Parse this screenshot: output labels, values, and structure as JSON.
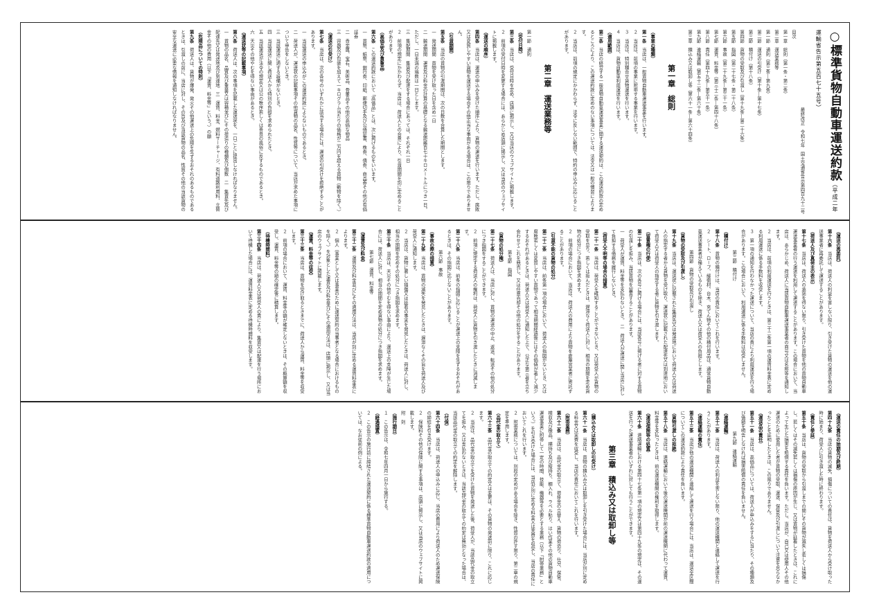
{
  "document": {
    "title": "○標準貨物自動車運送約款",
    "title_note": "（平成二年運輸省告示第五百七十五号）",
    "amendments": [
      "最終改正　令和七年　国土交通省告示第四百九十二号"
    ]
  },
  "panels": [
    [
      {
        "t": "title"
      },
      {
        "t": "meta",
        "v": "最終改正　令和七年　国土交通省告示第四百九十二号"
      },
      {
        "t": "p",
        "v": "目次"
      },
      {
        "t": "p",
        "v": "第一章　総則（第一条・第二条）"
      },
      {
        "t": "p",
        "v": "第二章　運送業務等"
      },
      {
        "t": "p",
        "v": "第一節　通則（第三条―第九条）"
      },
      {
        "t": "p",
        "v": "第二節　運送の引受け（第十条―第十七条）"
      },
      {
        "t": "p",
        "v": "第三節　積付け（第十八条）"
      },
      {
        "t": "p",
        "v": "第四節　貨物の受取及び引渡し（第十九条―第二十六条）"
      },
      {
        "t": "p",
        "v": "第五節　指図（第二十七条・第二十八条）"
      },
      {
        "t": "p",
        "v": "第六節　事故（第二十九条―第三十一条）"
      },
      {
        "t": "p",
        "v": "第七節　運賃、料金等（第三十二条―第四十八条）"
      },
      {
        "t": "p",
        "v": "第八節　責任（第四十九条―第五十一条）"
      },
      {
        "t": "p",
        "v": "第九節　連絡運輸（第五十二条―第六十条）"
      },
      {
        "t": "p",
        "v": "第三章　積込み又は取卸し等（第六十一条―第六十四条）"
      },
      {
        "t": "chap",
        "v": "第一章　総則"
      },
      {
        "t": "cap",
        "v": "（事業の種類）"
      },
      {
        "t": "p",
        "a": "第一条",
        "v": "　当店は、一般貨物自動車運送事業を行います。"
      },
      {
        "t": "p",
        "v": "２　当店は、前項の事業に附帯する事業を行います。"
      },
      {
        "t": "p",
        "v": "３　当店は、特別積合せ貨物運送を行います。"
      },
      {
        "t": "p",
        "v": "４　当店は、貨物自動車利用運送を行います。"
      },
      {
        "t": "cap",
        "v": "（適用範囲）"
      },
      {
        "t": "p",
        "a": "第二条",
        "v": "　当店の経営する一般貨物自動車運送事業に関する運送契約は、この運送約款の定めるところにより、この運送約款に定めのない事項については、法令又は一般の慣習によります。"
      },
      {
        "t": "p",
        "v": "２　当店は、前項の規定にかかわらず、法令に反しない範囲で、特約の申込みに応じることがあります。"
      },
      {
        "t": "chap",
        "v": "第二章　運送業務等"
      },
      {
        "t": "p",
        "v": "第一節　通則"
      },
      {
        "t": "cap",
        "v": "（受付日時）"
      },
      {
        "t": "p",
        "a": "第三条",
        "v": "　当店は、受付日時を定め、店頭に掲示し、又は当店のウェブサイトに掲載します。"
      },
      {
        "t": "p",
        "v": "２　前項の受付日時を変更する場合には、あらかじめ店頭に掲示し、又は当店のウェブサイトに掲載します。"
      },
      {
        "t": "cap",
        "v": "（運送の順序）"
      },
      {
        "t": "p",
        "a": "第四条",
        "v": "　当店は、運送の申込みを受けた順序により、貨物の運送を行います。ただし、腐敗又は変質しやすい貨物を運送する場合その他正当な事由がある場合は、この限りでありません。"
      },
      {
        "t": "cap",
        "v": "（引渡期間）"
      },
      {
        "t": "p",
        "a": "第五条",
        "v": "　当店の貨物の引渡期間は、次の日数を合算した期間とします。"
      },
      {
        "t": "p",
        "v": "一　発送期間　貨物を受け取った日を含め一日"
      },
      {
        "t": "p",
        "v": "二　輸送期間　運賃及び料金の計算の基礎となる輸送距離百七十キロメートルにつき一日。ただし、一日未満の端数は一日とします。"
      },
      {
        "t": "p",
        "v": "三　集配期間　集貨及び配達をする場合にあっては、それぞれ一日"
      },
      {
        "t": "p",
        "v": "２　前項の規定にかかわらず、当店は、荷送人との合意により、引渡期間を別に定めることがあります。"
      },
      {
        "t": "cap",
        "v": "（高価品及び貴重品）"
      },
      {
        "t": "p",
        "a": "第六条",
        "v": "　この運送約款において「高価品」とは、次に掲げるものをいいます。"
      },
      {
        "t": "p",
        "v": "一　貨幣、紙幣、銀行券、印紙、郵便切手及び公債証書、株券、債券、商品券その他の有価証券"
      },
      {
        "t": "p",
        "v": "二　貴金属、宝石、美術品、骨董品その他の高価な物品"
      },
      {
        "t": "p",
        "v": "三　容器及び包装を加えて一キログラム当たりの価格が二万円を超える貨物（動物を除く。）"
      },
      {
        "t": "cap",
        "v": "（運送の引受け）"
      },
      {
        "t": "p",
        "a": "第七条",
        "v": "　当店は、次の各号のいずれかに該当する場合には、運送の引受けを拒絶することがあります。"
      },
      {
        "t": "p",
        "v": "一　当該運送の申込みがこの運送約款によらないものであるとき。"
      },
      {
        "t": "p",
        "v": "二　荷送人が、運送状の記載事項その他貨物の品名、性質等について、当店が求めた事項について申告をしないとき。"
      },
      {
        "t": "p",
        "v": "三　当該運送に適する設備がないとき。"
      },
      {
        "t": "p",
        "v": "四　当該運送に関し荷送人から特別の負担を求められたとき。"
      },
      {
        "t": "p",
        "v": "五　当該運送が法令の規定又は公の秩序若しくは善良の風俗に反するものであるとき。"
      },
      {
        "t": "p",
        "v": "六　天災その他やむを得ない事由があるとき。"
      },
      {
        "t": "cap",
        "v": "（運送状等の記載事項）"
      },
      {
        "t": "p",
        "a": "第八条",
        "v": "　荷送人は、次の事項を記載した運送状を、一口ごとに提出しなければなりません。"
      },
      {
        "t": "p",
        "v": "一　貨物の品名、品質及び重量又は容積並びにその荷造りの種類及び個数　二　集貨先及び配達先又は発送地及び到達地　三　運賃、料金、燃料サーチャージ、有料道路利用料、立替金その他の費用（以下「運賃、料金等」という。）の額"
      },
      {
        "t": "cap",
        "v": "（危険品についての特則）"
      },
      {
        "t": "p",
        "a": "第九条",
        "v": "　荷送人は、貨物が爆発、発火その他運送上の危険を生ずるおそれのあるものであるときは、引渡しの前に、当店に対し、その旨及び当該貨物の品名、性質その他の当該貨物の安全な運送に必要な情報を通知しなければなりません。"
      }
    ],
    [
      {
        "t": "cap",
        "v": "（運送の再委託）"
      },
      {
        "t": "p",
        "a": "第十六条",
        "v": "　当店は、荷送人の利益を害しない限り、引き受けた貨物の運送を他の運送事業者に再委託して運送することがあります。"
      },
      {
        "t": "cap",
        "v": "（荷送人及び真荷主の表示）"
      },
      {
        "t": "p",
        "a": "第十七条",
        "v": "　当店は、荷送人の承諾を得ない限り、引き受けた貨物を他の貨物自動車運送事業者の行う運送を利用して運送することがあります。この場合において、当店は、あらかじめ、荷送人に当該貨物自動車運送事業者の商号又は名称等を通知します。"
      },
      {
        "t": "p",
        "v": "２　当店は、前項の利用運送を行うときは、第三十二条第一項の運賃料金表に定める利用運送に係る手数料を収受します。"
      },
      {
        "t": "p",
        "v": "３　第一項の通知を行わなかった運送について、当店の責により利用運送を行う場合があります。この場合において、利用運送に係る手数料は収受しません。"
      },
      {
        "t": "sec",
        "v": "第三節　積付け"
      },
      {
        "t": "cap",
        "v": "（積付け）"
      },
      {
        "t": "p",
        "a": "第十八条",
        "v": "　貨物の積付けは、当店の責任においてこれを行います。"
      },
      {
        "t": "p",
        "v": "２　シート、ロープ、緩衝材、台木、充てん物その他の積付用品は、通常貨物自動車運送事業者が備えているものを除き、荷送人又は荷受人の負担とします。"
      },
      {
        "t": "sec",
        "v": "第四節　貨物の受取及び引渡し"
      },
      {
        "t": "cap",
        "v": "（貨物の受取及び引渡し）"
      },
      {
        "t": "p",
        "a": "第十九条",
        "v": "　当店は、運送状に記載された集貨先又は発送地において荷送人又は荷送人の指定する者から貨物を受け取り、運送状に記載された配達先又は到達地において荷受人又は荷受人の指定する者に貨物を引き渡します。"
      },
      {
        "t": "cap",
        "v": "（留置権の行使）"
      },
      {
        "t": "p",
        "a": "第二十条",
        "v": "　当店は、次の各号に掲げる場合には、当該各号に掲げる者に対する貨物の引渡しを拒み、当該貨物を留置することがあります。"
      },
      {
        "t": "p",
        "v": "一　荷受人が運賃、料金等を支払わないとき。　二　荷送人が運送に関し当店に対して負担する債務を履行しないとき。"
      },
      {
        "t": "cap",
        "v": "（荷受人不明等の場合の措置）"
      },
      {
        "t": "p",
        "a": "第二十一条",
        "v": "　当店は、荷受人を確知することができないとき、又は荷受人が貨物の受取を怠り、若しくは拒んだときは、遅滞なく荷送人に対し、相当の期間を定め貨物の処分につき指図を求めます。"
      },
      {
        "t": "p",
        "v": "２　前項の場合において、当店は、荷送人の費用により貨物を倉庫営業者に寄託することがあります。"
      },
      {
        "t": "cap",
        "v": "（引渡不能の貨物の処分）"
      },
      {
        "t": "p",
        "a": "第二十二条",
        "v": "　当店は、前条第一項の場合において、荷送人の指図がないとき、又は腐敗若しくは変質しやすい貨物であって相当期間経過後にはその価値が著しく減少するおそれがあるときは、荷送人又は荷受人に通知した上で、公正な第三者を立ち会わせてこれを競売し、又は任意売却その他の処分をすることがあります。"
      },
      {
        "t": "sec",
        "v": "第五節　指図"
      },
      {
        "t": "cap",
        "v": "（貨物の処分権）"
      },
      {
        "t": "p",
        "a": "第二十七条",
        "v": "　荷送人は、当店に対し、貨物の運送の中止、返送、転送その他の処分につき指図をすることができます。"
      },
      {
        "t": "p",
        "v": "２　前項に規定する荷送人の権利は、荷受人に貨物を引き渡したときに消滅します。"
      },
      {
        "t": "p",
        "a": "第二十八条",
        "v": "　当店は、前条の指図に応じることが運送上の支障を生ずるおそれがあるときは、その指図に応じないことがあります。"
      },
      {
        "t": "sec",
        "v": "第六節　事故"
      },
      {
        "t": "cap",
        "v": "（事故の際の措置）"
      },
      {
        "t": "p",
        "a": "第二十九条",
        "v": "　当店は、貨物の滅失を発見したときは、遅滞なくその旨を荷送人及び荷受人に通知します。"
      },
      {
        "t": "p",
        "v": "２　当店は、貨物に著しい損傷又は延着の事実を発見したときは、荷送人に対し、相当の期間を定めその処分につき指図を求めます。"
      },
      {
        "t": "p",
        "a": "第三十条",
        "v": "　当店は、天災その他やむを得ない事由により、運送上の支障が生じた場合には、荷送人に対し、相当の期間を定め貨物の処分につき指図を求めます。"
      },
      {
        "t": "sec",
        "v": "第七節　運賃、料金等"
      },
      {
        "t": "cap",
        "v": "（運賃及び料金）"
      },
      {
        "t": "p",
        "a": "第三十二条",
        "v": "　運賃及び料金並びにその適用方法は、当店が別に定める運賃料金表によります。"
      },
      {
        "t": "p",
        "v": "２　個人（事業として又は事業のために運送契約の当事者となる場合におけるものを除く。）を対象とした運賃及び料金並びにその適用方法は、店頭に掲示し、又は当店のウェブサイトに掲載します。"
      },
      {
        "t": "cap",
        "v": "（運賃、料金等の収受）"
      },
      {
        "t": "p",
        "a": "第三十三条",
        "v": "　当店は、貨物を受け取るときまでに、荷送人から運賃、料金等を収受します。"
      },
      {
        "t": "p",
        "v": "２　前項の場合において、運賃、料金等の額が確定しないときは、その概算額を収受し、運賃、料金等の額の確定後に精算します。"
      },
      {
        "t": "cap",
        "v": "（待機時間料）"
      },
      {
        "t": "p",
        "a": "第三十四条",
        "v": "　当店は、荷送人又は荷受人の責により、集貨又は配達を行う場所において待機した場合には、運賃料金表に定める待機時間料を収受します。"
      }
    ],
    [
      {
        "t": "cap",
        "v": "（運送の責任の始期及び終期）"
      },
      {
        "t": "p",
        "a": "第四十九条",
        "v": "　当店の貨物の滅失、損傷についての責任は、貨物を荷送人から受け取った時に始まり、荷受人に引き渡した時に終わります。"
      },
      {
        "t": "cap",
        "v": "（責任と挙証）"
      },
      {
        "t": "p",
        "a": "第五十条",
        "v": "　当店は、貨物の受取から引渡しまでの間にその貨物が滅失し若しくは損傷し、若しくはその滅失若しくは損傷の原因が生じ、又は貨物が延着したときは、これによって生じた損害を賠償する責任を負います。ただし、当店が、自己又は使用人その他運送のために使用した者が貨物の受取、運送、保管及び引渡しについて注意を怠らなかったことを証明したときは、この限りでありません。"
      },
      {
        "t": "cap",
        "v": "（運送品の責任）"
      },
      {
        "t": "p",
        "a": "第五十一条",
        "v": "　当店は、高価品については、荷送人が申込みをするに当たり、その種類及び価額を明告しなければ損害賠償の責任を負いません。"
      },
      {
        "t": "sec",
        "v": "第九節　連絡運輸"
      },
      {
        "t": "cap",
        "v": "（連絡運輸）"
      },
      {
        "t": "p",
        "a": "第五十二条",
        "v": "　当店は、荷送人の利益を害しない限り、他の運送機関と連絡して運送を行うことがあります。"
      },
      {
        "t": "cap",
        "v": "（連絡運輸の責任）"
      },
      {
        "t": "p",
        "a": "第五十三条",
        "v": "　当店が他の運送機関と連絡して運送を行う場合には、当店は、運送全区間についてこの運送約款により責任を負います。"
      },
      {
        "t": "cap",
        "v": "（貨物引渡しの拒絶）"
      },
      {
        "t": "p",
        "a": "第五十八条",
        "v": "　当店は、連絡運輸において後の運送機関が前の運送機関に代わって運賃、料金等を支払ったときは、前の運送機関の権利を取得します。"
      },
      {
        "t": "cap",
        "v": "（運送保険等の処置）"
      },
      {
        "t": "p",
        "a": "第六十条",
        "v": "　連絡運輸における第四十七条第一項の規定又は第四十九条の規定は、その運送を行った運送事業者のいずれに対しても行うことができます。"
      },
      {
        "t": "chap",
        "v": "第三章　積込み又は取卸し等"
      },
      {
        "t": "cap",
        "v": "（積込み又は取卸しの引受け）"
      },
      {
        "t": "p",
        "a": "第六十一条",
        "v": "　当店は、貨物の積込み又は取卸しを引き受けた場合には、当店が別に定める料金又は実費を収受し、当店の責任においてこれを行います。"
      },
      {
        "t": "cap",
        "v": "（附帯業務）"
      },
      {
        "t": "p",
        "a": "第六十二条",
        "v": "　当店は、品代金の取立て、荷掛金の立替え、貨物の荷造り、仕分、保管、検収及び検品、横持ち及び縦持ち、棚入れ、ラベル貼り、はい作業その他の貨物自動車運送事業に附帯して一定の時間、技能、機器等を必要とする業務（以下「附帯業務」という。）を引き受けた場合には、当店が別に定める料金又は実費を収受し、当店の責任においてこれを行います。"
      },
      {
        "t": "p",
        "v": "２　附帯業務については、別段の定めがある場合を除き、性質の許す限り、第二章の規定を準用します。"
      },
      {
        "t": "cap",
        "v": "（品代金の取立て）"
      },
      {
        "t": "p",
        "a": "第六十三条",
        "v": "　品代金の取立ての約定又は変更は、その貨物の発送前に限り、これに応じます。"
      },
      {
        "t": "p",
        "v": "２　当店は、品代金の取立てを受けた貨物を発送した後、荷受人が、当該品代金の取立てを拒み、又は支払わないときは、当該品代金の取立ての約定は無効となった場合は、当該品代金の取立ての約定を解除します。"
      },
      {
        "t": "cap",
        "v": "（付保）"
      },
      {
        "t": "p",
        "a": "第六十四条",
        "v": "　当店は、荷送人の申込みに応じ、当店の費用により荷送人のため運送保険の締結を引き受けます。"
      },
      {
        "t": "p",
        "v": "２　保険料その他の保険に関する事項は、店頭に掲示し、又は当店のウェブサイトに掲載します。"
      },
      {
        "t": "p",
        "v": "附　則"
      },
      {
        "t": "cap",
        "v": "（施行期日）"
      },
      {
        "t": "p",
        "v": "１　この告示は、令和七年四月一日から施行する。"
      },
      {
        "t": "cap",
        "v": "（経過措置）"
      },
      {
        "t": "p",
        "v": "２　この告示の施行前に締結された運送契約に係る標準貨物自動車運送約款の適用については、なお従前の例による。"
      }
    ]
  ]
}
